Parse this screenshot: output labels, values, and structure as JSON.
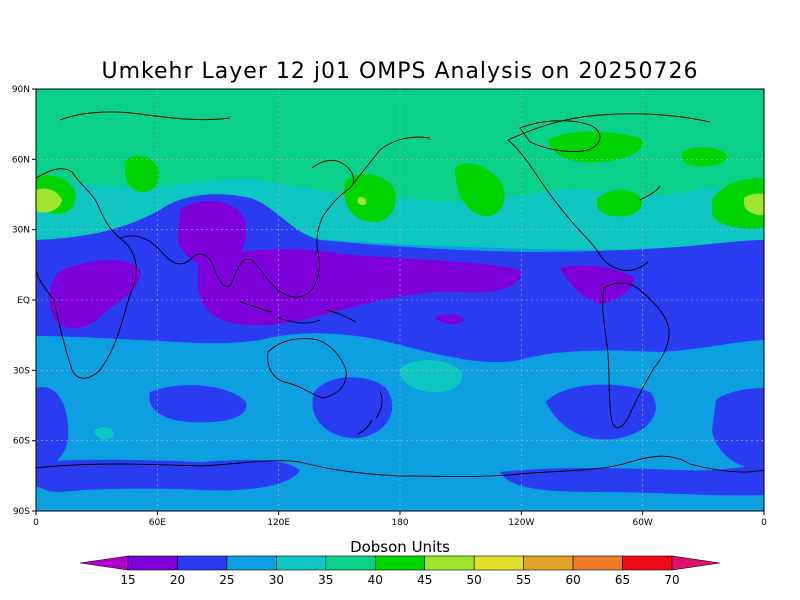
{
  "chart_data": {
    "type": "heatmap",
    "title": "Umkehr Layer 12 j01 OMPS Analysis on 20250726",
    "colorbar_title": "Dobson Units",
    "x_ticks": [
      "0",
      "60E",
      "120E",
      "180",
      "120W",
      "60W",
      "0"
    ],
    "y_ticks": [
      "90N",
      "60N",
      "30N",
      "EQ",
      "30S",
      "60S",
      "90S"
    ],
    "lon_range": [
      0,
      360
    ],
    "lat_range": [
      -90,
      90
    ],
    "grid": true,
    "levels": [
      "15",
      "20",
      "25",
      "30",
      "35",
      "40",
      "45",
      "50",
      "55",
      "60",
      "65",
      "70"
    ],
    "colors": [
      "#b100ce",
      "#7d00d8",
      "#2a3cf0",
      "#0d9fe0",
      "#0fc6c2",
      "#0ad08a",
      "#00d400",
      "#9de62d",
      "#e0df2a",
      "#e0a528",
      "#ec7c29",
      "#ef0a17",
      "#e0106e"
    ],
    "value_ranges_DU": {
      "south_polar_band": "25-30",
      "southern_mid_latitudes": "25-30",
      "tropical_band": "20-25",
      "tropical_cores": "15-20",
      "northern_subtropics": "30-35",
      "northern_mid_high_latitudes": "35-40",
      "northern_maxima": "40-45",
      "peak_maxima": "45-50"
    }
  }
}
